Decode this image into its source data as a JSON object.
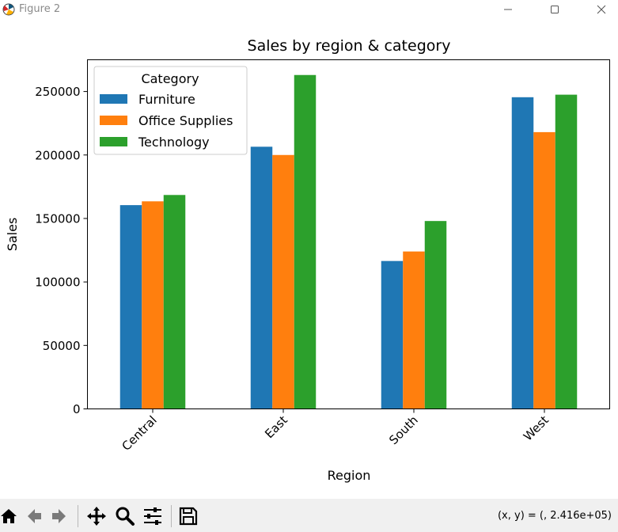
{
  "window": {
    "title": "Figure 2",
    "icons": [
      "matplotlib-icon",
      "minimize-icon",
      "maximize-icon",
      "close-icon"
    ]
  },
  "colors": {
    "Furniture": "#1f77b4",
    "Office Supplies": "#ff7f0e",
    "Technology": "#2ca02c"
  },
  "chart_data": {
    "type": "bar",
    "title": "Sales by region & category",
    "xlabel": "Region",
    "ylabel": "Sales",
    "categories": [
      "Central",
      "East",
      "South",
      "West"
    ],
    "series": [
      {
        "name": "Furniture",
        "values": [
          160500,
          206500,
          116500,
          245500
        ]
      },
      {
        "name": "Office Supplies",
        "values": [
          163500,
          200000,
          124000,
          218000
        ]
      },
      {
        "name": "Technology",
        "values": [
          168500,
          263000,
          148000,
          247500
        ]
      }
    ],
    "ylim": [
      0,
      275000
    ],
    "yticks": [
      0,
      50000,
      100000,
      150000,
      200000,
      250000
    ],
    "ytick_labels": [
      "0",
      "50000",
      "100000",
      "150000",
      "200000",
      "250000"
    ],
    "legend": {
      "title": "Category",
      "position": "top-left"
    },
    "grid": false
  },
  "toolbar": {
    "buttons": [
      "home-icon",
      "back-icon",
      "forward-icon",
      "pan-icon",
      "zoom-icon",
      "configure-subplots-icon",
      "save-icon"
    ],
    "coords": "(x, y) = (, 2.416e+05)"
  }
}
